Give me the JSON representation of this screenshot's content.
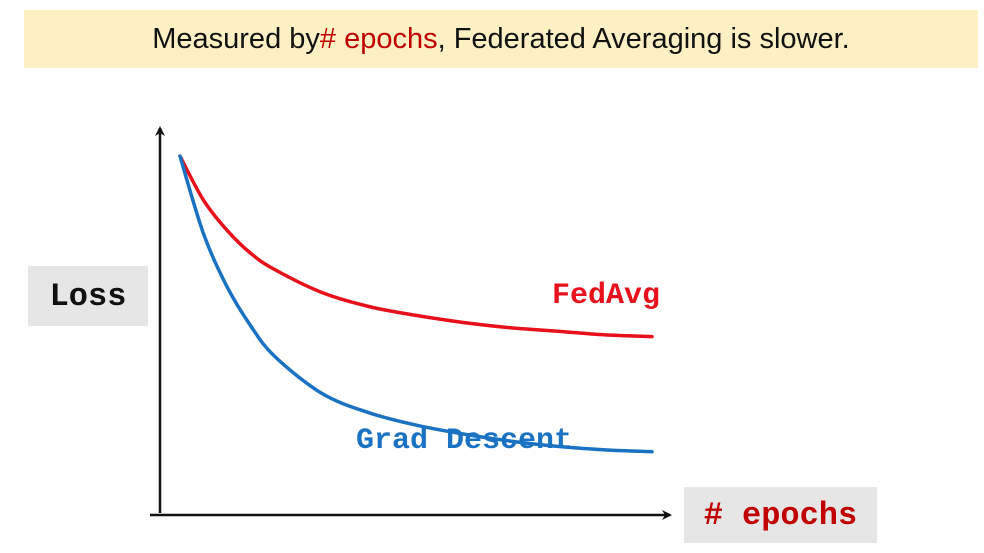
{
  "header": {
    "prefix": "Measured by ",
    "highlight": "# epochs",
    "suffix": ", Federated Averaging is slower."
  },
  "colors": {
    "banner_bg": "#fdf0c4",
    "highlight": "#c00000",
    "fedavg": "#e8101a",
    "grad_descent": "#1a72c2",
    "label_bg": "#e6e6e6"
  },
  "chart_data": {
    "type": "line",
    "title": "Measured by # epochs, Federated Averaging is slower.",
    "ylabel": "Loss",
    "xlabel_hash": "#",
    "xlabel_word": "epochs",
    "xlim": [
      0,
      10
    ],
    "ylim": [
      0,
      10
    ],
    "grid": false,
    "axis_ticks": false,
    "series": [
      {
        "name": "FedAvg",
        "color": "#e8101a",
        "x": [
          0,
          0.5,
          1,
          1.5,
          2,
          3,
          4,
          5,
          6,
          7,
          8,
          9,
          10
        ],
        "y": [
          9.8,
          8.55,
          7.7,
          7.05,
          6.6,
          5.95,
          5.55,
          5.3,
          5.1,
          4.95,
          4.85,
          4.75,
          4.7
        ]
      },
      {
        "name": "Grad Descent",
        "color": "#1a72c2",
        "x": [
          0,
          0.5,
          1,
          1.5,
          2,
          3,
          4,
          5,
          6,
          7,
          8,
          9,
          10
        ],
        "y": [
          9.8,
          7.6,
          6.1,
          5.0,
          4.15,
          3.1,
          2.55,
          2.2,
          1.95,
          1.75,
          1.6,
          1.5,
          1.45
        ]
      }
    ]
  }
}
